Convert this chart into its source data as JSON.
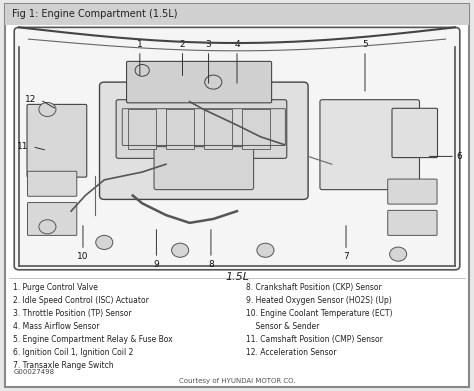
{
  "title": "Fig 1: Engine Compartment (1.5L)",
  "subtitle": "1.5L",
  "bg_color": "#e8e8e8",
  "border_color": "#888888",
  "text_color": "#222222",
  "courtesy": "Courtesy of HYUNDAI MOTOR CO.",
  "fig_id": "G00027498",
  "legend_left": [
    "1. Purge Control Valve",
    "2. Idle Speed Control (ISC) Actuator",
    "3. Throttle Position (TP) Sensor",
    "4. Mass Airflow Sensor",
    "5. Engine Compartment Relay & Fuse Box",
    "6. Ignition Coil 1, Ignition Coil 2",
    "7. Transaxle Range Switch"
  ],
  "legend_right": [
    "8. Crankshaft Position (CKP) Sensor",
    "9. Heated Oxygen Sensor (HO2S) (Up)",
    "10. Engine Coolant Temperature (ECT)",
    "    Sensor & Sender",
    "11. Camshaft Position (CMP) Sensor",
    "12. Acceleration Sensor"
  ]
}
